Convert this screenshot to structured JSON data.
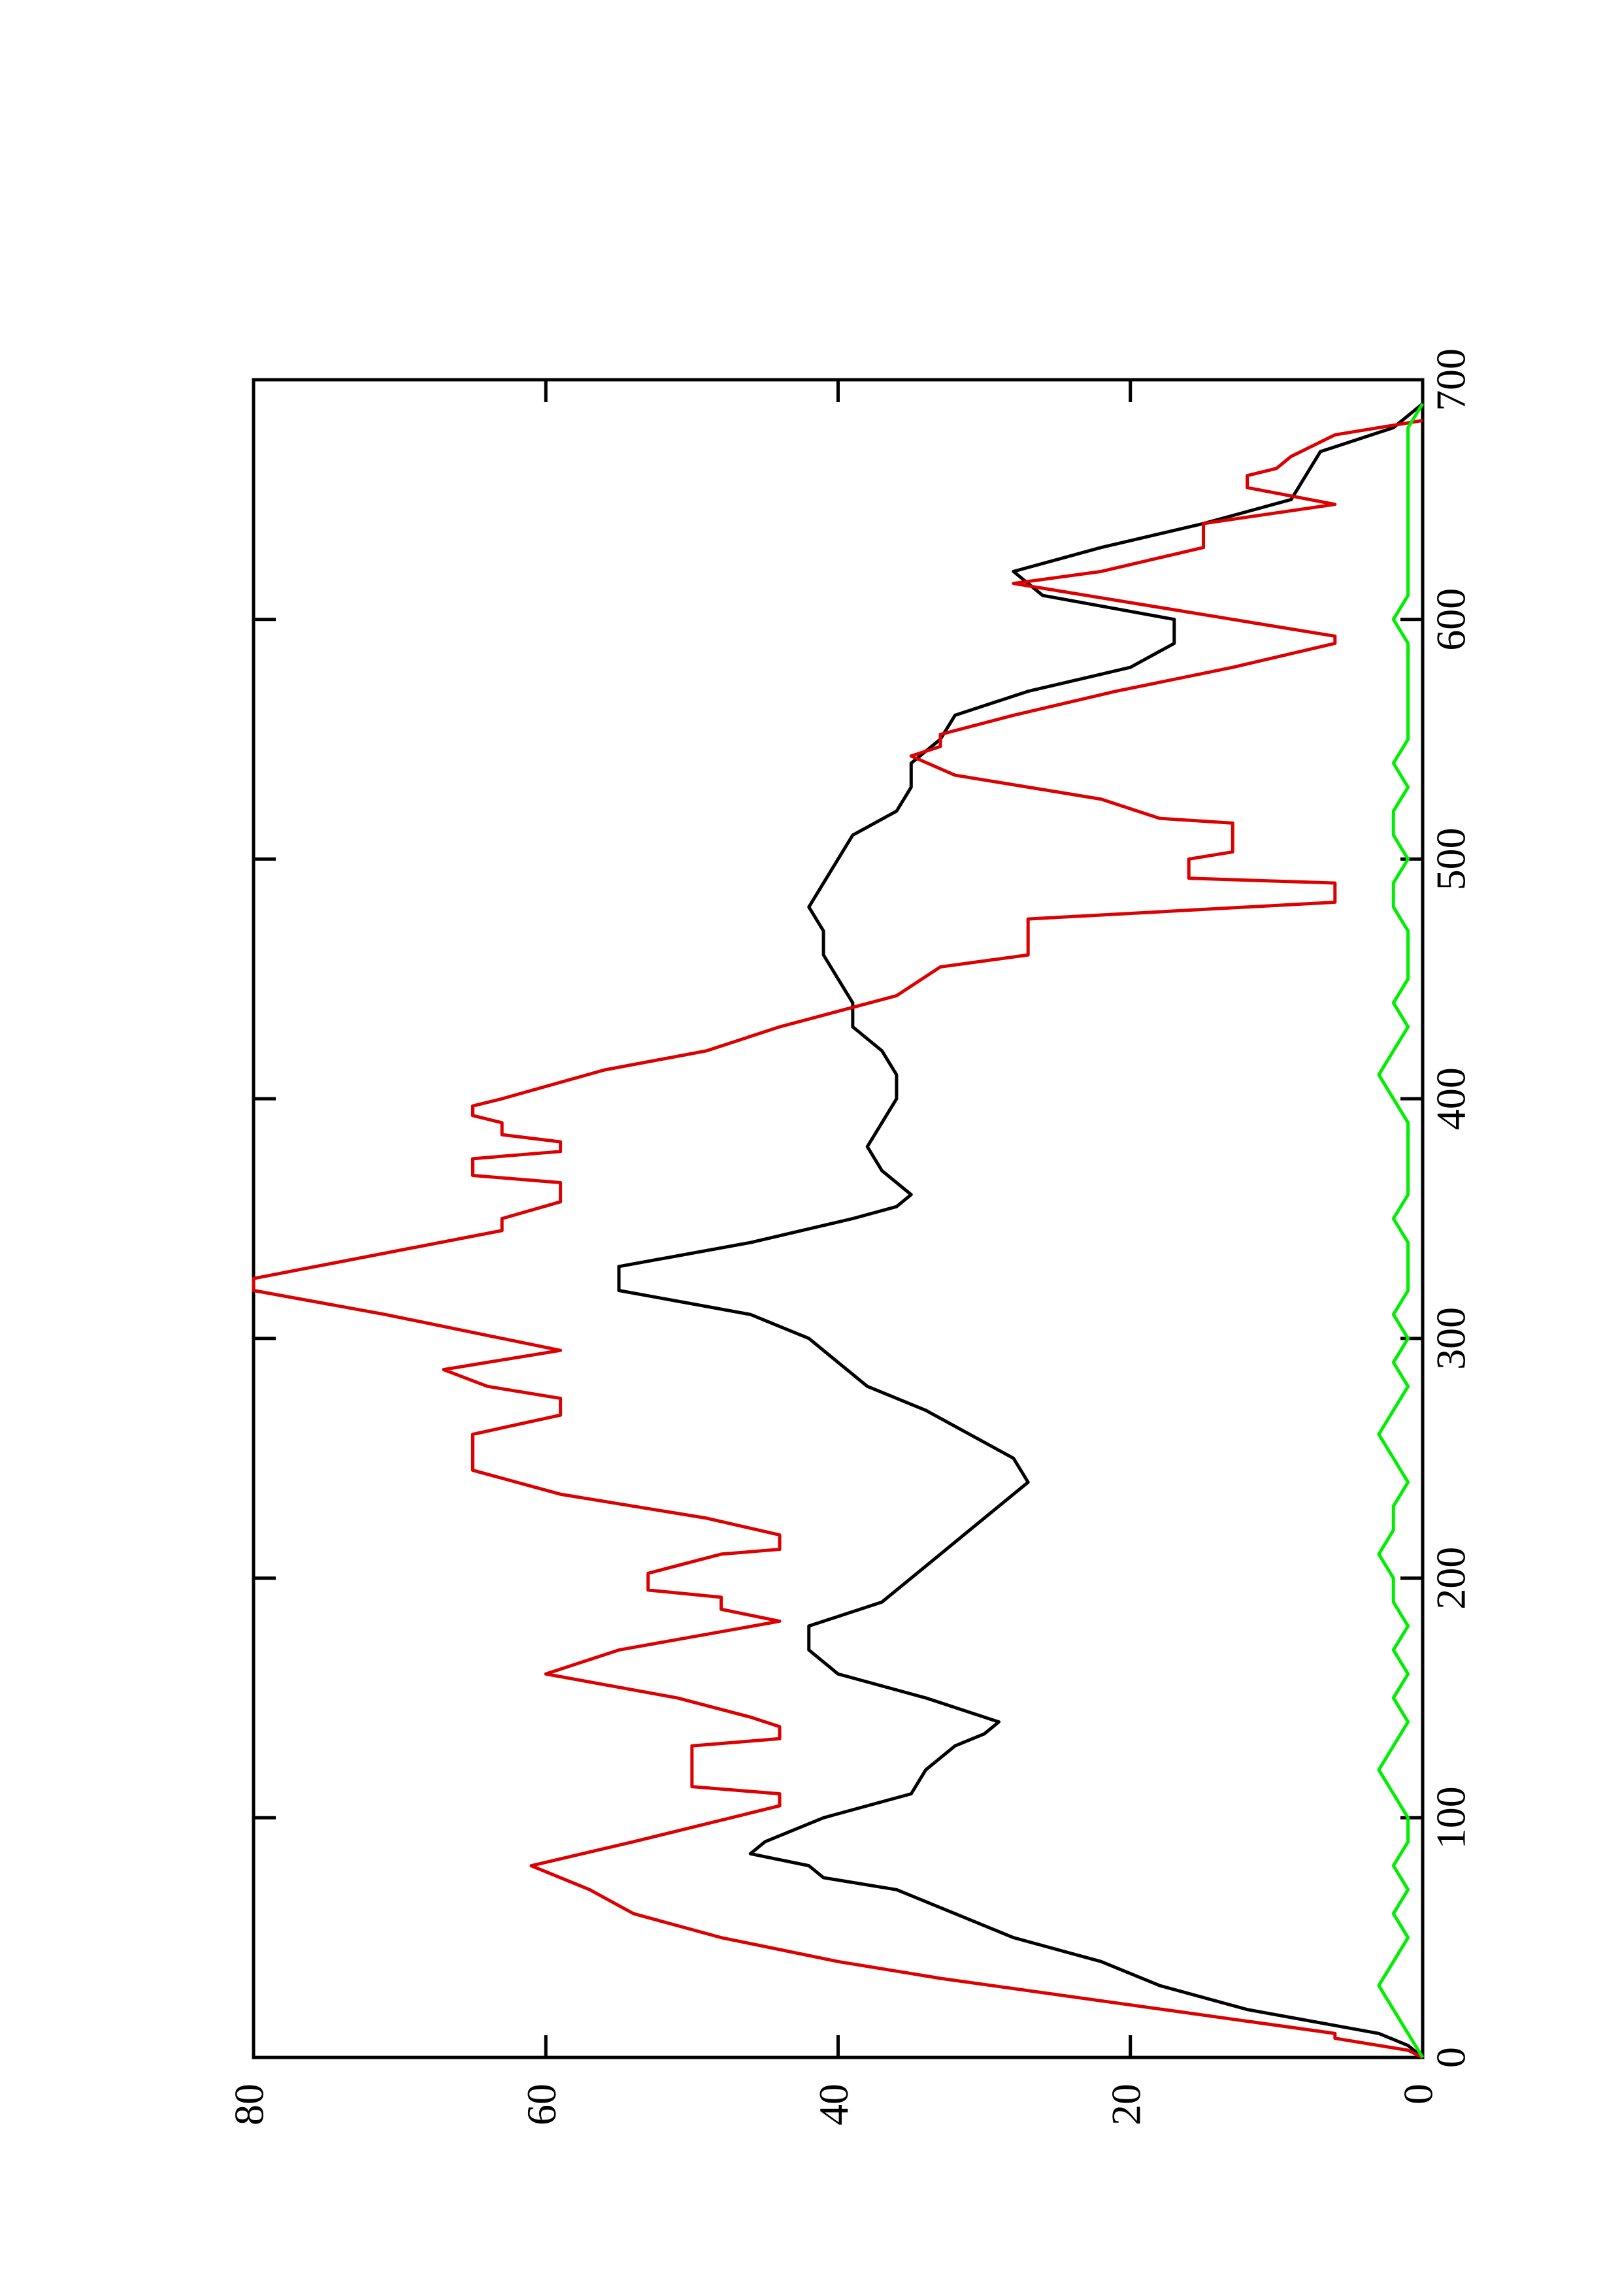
{
  "chart_data": {
    "type": "line",
    "xlim": [
      0,
      700
    ],
    "xticks": [
      0,
      100,
      200,
      300,
      400,
      500,
      600,
      700
    ],
    "ylim": [
      0,
      80
    ],
    "yticks": [
      0,
      20,
      40,
      60,
      80
    ],
    "series": [
      {
        "color": "#000000",
        "x": [
          0,
          5,
          10,
          20,
          30,
          40,
          50,
          60,
          70,
          75,
          80,
          85,
          90,
          100,
          110,
          120,
          130,
          135,
          140,
          150,
          160,
          170,
          180,
          190,
          200,
          210,
          220,
          230,
          240,
          250,
          260,
          270,
          280,
          290,
          300,
          310,
          320,
          330,
          340,
          350,
          355,
          360,
          370,
          380,
          390,
          400,
          410,
          420,
          430,
          440,
          450,
          460,
          470,
          480,
          490,
          500,
          510,
          520,
          530,
          540,
          550,
          560,
          570,
          580,
          590,
          600,
          610,
          620,
          630,
          640,
          650,
          660,
          670,
          680,
          690
        ],
        "values": [
          0,
          1,
          3,
          12,
          18,
          22,
          28,
          32,
          36,
          41,
          42,
          46,
          45,
          41,
          35,
          34,
          32,
          30,
          29,
          34,
          40,
          42,
          42,
          37,
          35,
          33,
          31,
          29,
          27,
          28,
          31,
          34,
          38,
          40,
          42,
          46,
          55,
          55,
          46,
          39,
          36,
          35,
          37,
          38,
          37,
          36,
          36,
          37,
          39,
          39,
          40,
          41,
          41,
          42,
          41,
          40,
          39,
          36,
          35,
          35,
          33,
          32,
          27,
          20,
          17,
          17,
          26,
          28,
          22,
          15,
          9,
          8,
          7,
          2,
          0
        ]
      },
      {
        "color": "#dd0000",
        "x": [
          0,
          3,
          8,
          10,
          33,
          40,
          50,
          60,
          70,
          80,
          90,
          105,
          110,
          113,
          130,
          133,
          138,
          142,
          150,
          160,
          170,
          182,
          187,
          192,
          195,
          202,
          210,
          212,
          218,
          225,
          235,
          245,
          260,
          268,
          275,
          280,
          287,
          290,
          295,
          300,
          310,
          320,
          325,
          345,
          350,
          357,
          365,
          368,
          375,
          378,
          382,
          385,
          390,
          393,
          397,
          400,
          412,
          420,
          430,
          443,
          455,
          460,
          475,
          482,
          490,
          492,
          500,
          503,
          515,
          517,
          525,
          535,
          543,
          547,
          552,
          560,
          570,
          580,
          590,
          593,
          600,
          605,
          615,
          620,
          630,
          640,
          648,
          655,
          660,
          663,
          668,
          677,
          683
        ],
        "values": [
          0,
          1,
          6,
          6,
          33,
          40,
          48,
          54,
          57,
          61,
          54,
          44,
          44,
          50,
          50,
          44,
          44,
          46,
          51,
          60,
          55,
          44,
          48,
          48,
          53,
          53,
          48,
          44,
          44,
          49,
          59,
          65,
          65,
          59,
          59,
          64,
          67,
          64,
          59,
          63,
          71,
          80,
          80,
          63,
          63,
          59,
          59,
          65,
          65,
          59,
          59,
          63,
          63,
          65,
          65,
          63,
          56,
          49,
          44,
          36,
          33,
          27,
          27,
          6,
          6,
          16,
          16,
          13,
          13,
          18,
          22,
          32,
          35,
          33,
          33,
          28,
          21,
          13,
          6,
          6,
          13,
          18,
          28,
          22,
          15,
          15,
          6,
          12,
          12,
          10,
          9,
          6,
          0
        ]
      },
      {
        "color": "#00ee00",
        "x": [
          0,
          10,
          20,
          30,
          40,
          50,
          60,
          70,
          80,
          90,
          100,
          110,
          120,
          130,
          140,
          150,
          160,
          170,
          180,
          190,
          200,
          210,
          220,
          230,
          240,
          250,
          260,
          270,
          280,
          290,
          300,
          310,
          320,
          330,
          340,
          350,
          360,
          370,
          380,
          390,
          400,
          410,
          420,
          430,
          440,
          450,
          460,
          470,
          480,
          490,
          500,
          510,
          520,
          530,
          540,
          550,
          560,
          570,
          580,
          590,
          600,
          610,
          620,
          630,
          640,
          650,
          660,
          670,
          680,
          690
        ],
        "values": [
          0,
          1,
          2,
          3,
          2,
          1,
          2,
          1,
          2,
          1,
          1,
          2,
          3,
          2,
          1,
          2,
          1,
          2,
          1,
          2,
          2,
          3,
          2,
          2,
          1,
          2,
          3,
          2,
          1,
          2,
          1,
          2,
          1,
          1,
          1,
          2,
          1,
          1,
          1,
          1,
          2,
          3,
          2,
          1,
          2,
          1,
          1,
          1,
          2,
          2,
          1,
          2,
          2,
          1,
          2,
          1,
          1,
          1,
          1,
          1,
          2,
          1,
          1,
          1,
          1,
          1,
          1,
          1,
          1,
          0
        ]
      }
    ]
  }
}
